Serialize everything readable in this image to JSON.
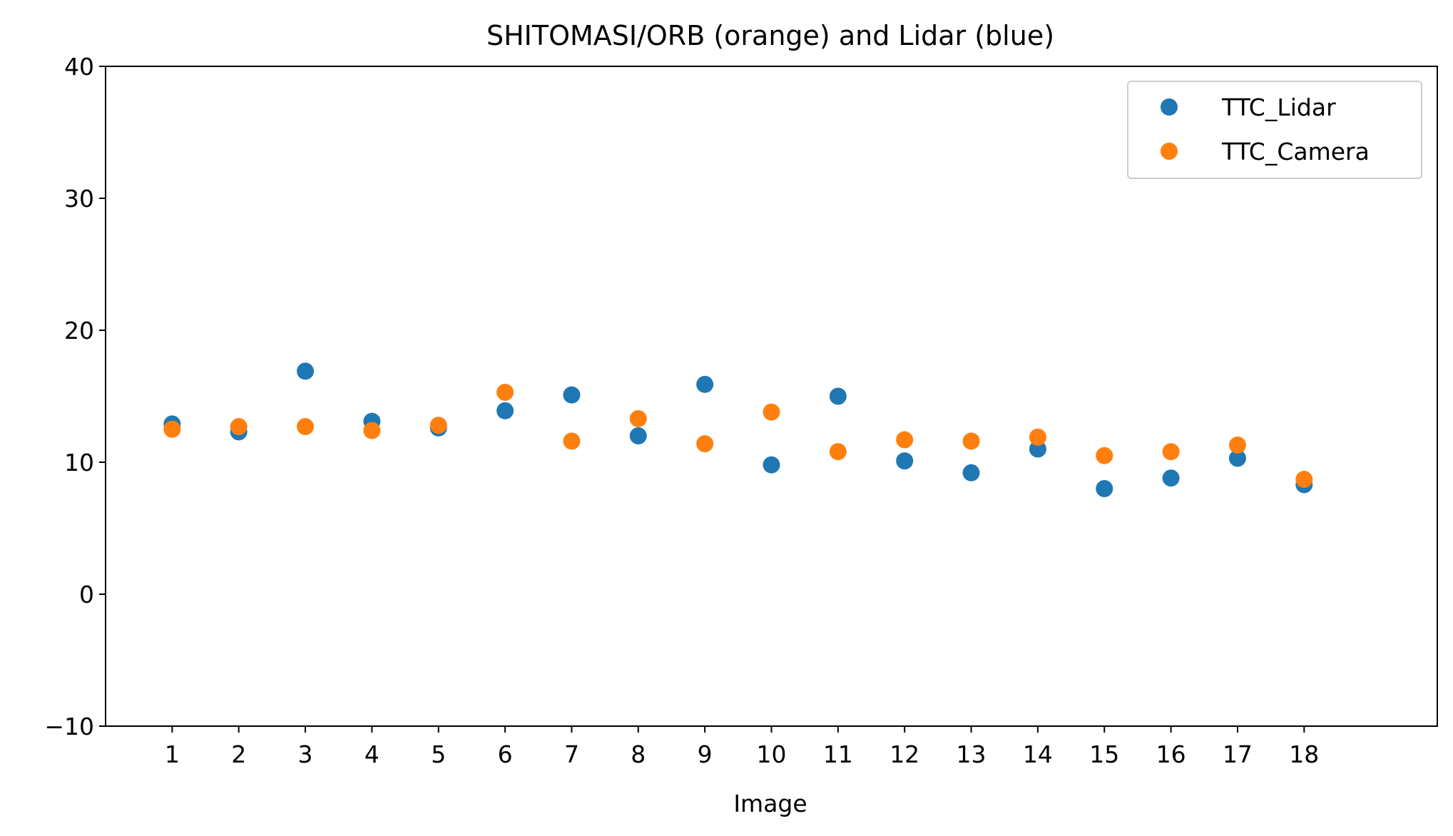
{
  "chart_data": {
    "type": "scatter",
    "title": "SHITOMASI/ORB (orange) and Lidar (blue)",
    "xlabel": "Image",
    "ylabel": "",
    "x": [
      1,
      2,
      3,
      4,
      5,
      6,
      7,
      8,
      9,
      10,
      11,
      12,
      13,
      14,
      15,
      16,
      17,
      18
    ],
    "xticks": [
      "1",
      "2",
      "3",
      "4",
      "5",
      "6",
      "7",
      "8",
      "9",
      "10",
      "11",
      "12",
      "13",
      "14",
      "15",
      "16",
      "17",
      "18"
    ],
    "xlim": [
      0,
      20
    ],
    "ylim": [
      -10,
      40
    ],
    "yticks": [
      -10,
      0,
      10,
      20,
      30,
      40
    ],
    "ytick_labels": [
      "−10",
      "0",
      "10",
      "20",
      "30",
      "40"
    ],
    "grid": false,
    "legend_position": "top-right",
    "series": [
      {
        "name": "TTC_Lidar",
        "color": "#1f77b4",
        "values": [
          12.9,
          12.3,
          16.9,
          13.1,
          12.6,
          13.9,
          15.1,
          12.0,
          15.9,
          9.8,
          15.0,
          10.1,
          9.2,
          11.0,
          8.0,
          8.8,
          10.3,
          8.3
        ]
      },
      {
        "name": "TTC_Camera",
        "color": "#ff7f0e",
        "values": [
          12.5,
          12.7,
          12.7,
          12.4,
          12.8,
          15.3,
          11.6,
          13.3,
          11.4,
          13.8,
          10.8,
          11.7,
          11.6,
          11.9,
          10.5,
          10.8,
          11.3,
          8.7
        ]
      }
    ]
  }
}
